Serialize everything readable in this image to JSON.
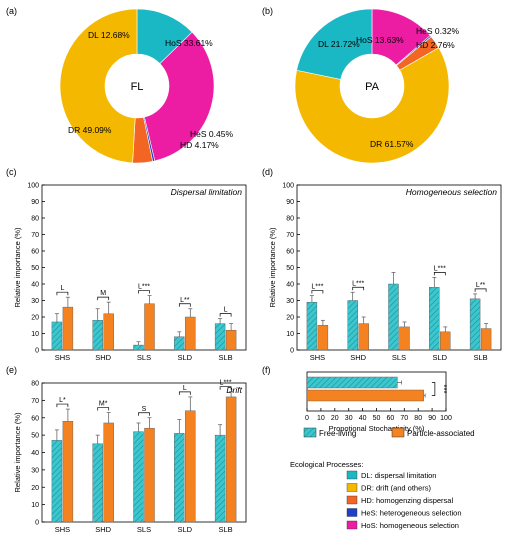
{
  "colors": {
    "dl": "#1ab8c4",
    "dr": "#f5b800",
    "hd": "#f26522",
    "hes": "#1f3fc8",
    "hos": "#ec1ca3",
    "free": "#3cc7cf",
    "particle": "#f58220",
    "axis": "#000000"
  },
  "chart_data": [
    {
      "panel": "(a)",
      "type": "pie",
      "center_label": "FL",
      "slices": [
        {
          "key": "dl",
          "label": "DL 12.68%",
          "value": 12.68
        },
        {
          "key": "hos",
          "label": "HoS 33.61%",
          "value": 33.61
        },
        {
          "key": "hes",
          "label": "HeS 0.45%",
          "value": 0.45
        },
        {
          "key": "hd",
          "label": "HD 4.17%",
          "value": 4.17
        },
        {
          "key": "dr",
          "label": "DR 49.09%",
          "value": 49.09
        }
      ]
    },
    {
      "panel": "(b)",
      "type": "pie",
      "center_label": "PA",
      "slices": [
        {
          "key": "hos",
          "label": "HoS 13.63%",
          "value": 13.63
        },
        {
          "key": "hes",
          "label": "HeS 0.32%",
          "value": 0.32
        },
        {
          "key": "hd",
          "label": "HD 2.76%",
          "value": 2.76
        },
        {
          "key": "dr",
          "label": "DR 61.57%",
          "value": 61.57
        },
        {
          "key": "dl",
          "label": "DL 21.72%",
          "value": 21.72
        }
      ]
    },
    {
      "panel": "(c)",
      "type": "bar",
      "title": "Dispersal limitation",
      "ylabel": "Relative importance (%)",
      "ylim": [
        0,
        100
      ],
      "yticks": [
        "0",
        "10",
        "20",
        "30",
        "40",
        "50",
        "60",
        "70",
        "80",
        "90",
        "100"
      ],
      "categories": [
        "SHS",
        "SHD",
        "SLS",
        "SLD",
        "SLB"
      ],
      "series": [
        {
          "key": "free",
          "values": [
            17,
            18,
            3,
            8,
            16
          ],
          "errors": [
            5,
            7,
            2,
            3,
            3
          ]
        },
        {
          "key": "particle",
          "values": [
            26,
            22,
            28,
            20,
            12
          ],
          "errors": [
            6,
            7,
            5,
            5,
            4
          ]
        }
      ],
      "annotations": [
        "L",
        "M",
        "L***",
        "L**",
        "L"
      ]
    },
    {
      "panel": "(d)",
      "type": "bar",
      "title": "Homogeneous selection",
      "ylabel": "Relative importance (%)",
      "ylim": [
        0,
        100
      ],
      "yticks": [
        "0",
        "10",
        "20",
        "30",
        "40",
        "50",
        "60",
        "70",
        "80",
        "90",
        "100"
      ],
      "categories": [
        "SHS",
        "SHD",
        "SLS",
        "SLD",
        "SLB"
      ],
      "series": [
        {
          "key": "free",
          "values": [
            29,
            30,
            40,
            38,
            31
          ],
          "errors": [
            4,
            5,
            7,
            6,
            3
          ]
        },
        {
          "key": "particle",
          "values": [
            15,
            16,
            14,
            11,
            13
          ],
          "errors": [
            3,
            4,
            3,
            3,
            3
          ]
        }
      ],
      "annotations": [
        "L***",
        "L***",
        "",
        "L***",
        "L**"
      ]
    },
    {
      "panel": "(e)",
      "type": "bar",
      "title": "Drift",
      "ylabel": "Relative importance (%)",
      "ylim": [
        0,
        80
      ],
      "yticks": [
        "0",
        "10",
        "20",
        "30",
        "40",
        "50",
        "60",
        "70",
        "80"
      ],
      "categories": [
        "SHS",
        "SHD",
        "SLS",
        "SLD",
        "SLB"
      ],
      "series": [
        {
          "key": "free",
          "values": [
            47,
            45,
            52,
            51,
            50
          ],
          "errors": [
            6,
            5,
            5,
            8,
            6
          ]
        },
        {
          "key": "particle",
          "values": [
            58,
            57,
            54,
            64,
            72
          ],
          "errors": [
            7,
            6,
            6,
            8,
            3
          ]
        }
      ],
      "annotations": [
        "L*",
        "M*",
        "S",
        "L",
        "L***"
      ]
    },
    {
      "panel": "(f)",
      "type": "bar",
      "orientation": "horizontal",
      "xlabel": "Propotional Stochasticity (%)",
      "xlim": [
        0,
        100
      ],
      "xticks": [
        "0",
        "10",
        "20",
        "30",
        "40",
        "50",
        "60",
        "70",
        "80",
        "90",
        "100"
      ],
      "series": [
        {
          "key": "free",
          "value": 65,
          "error": 3
        },
        {
          "key": "particle",
          "value": 84,
          "error": 1
        }
      ],
      "annotation": "***"
    }
  ],
  "legend_sample": {
    "items": [
      {
        "key": "free",
        "label": "Free-living"
      },
      {
        "key": "particle",
        "label": "Particle-associated"
      }
    ]
  },
  "legend_process": {
    "title": "Ecological Processes:",
    "items": [
      {
        "key": "dl",
        "label": "DL: dispersal limitation"
      },
      {
        "key": "dr",
        "label": "DR: drift (and others)"
      },
      {
        "key": "hd",
        "label": "HD: homogenzing dispersal"
      },
      {
        "key": "hes",
        "label": "HeS: heterogeneous selection"
      },
      {
        "key": "hos",
        "label": "HoS: homogeneous selection"
      }
    ]
  }
}
